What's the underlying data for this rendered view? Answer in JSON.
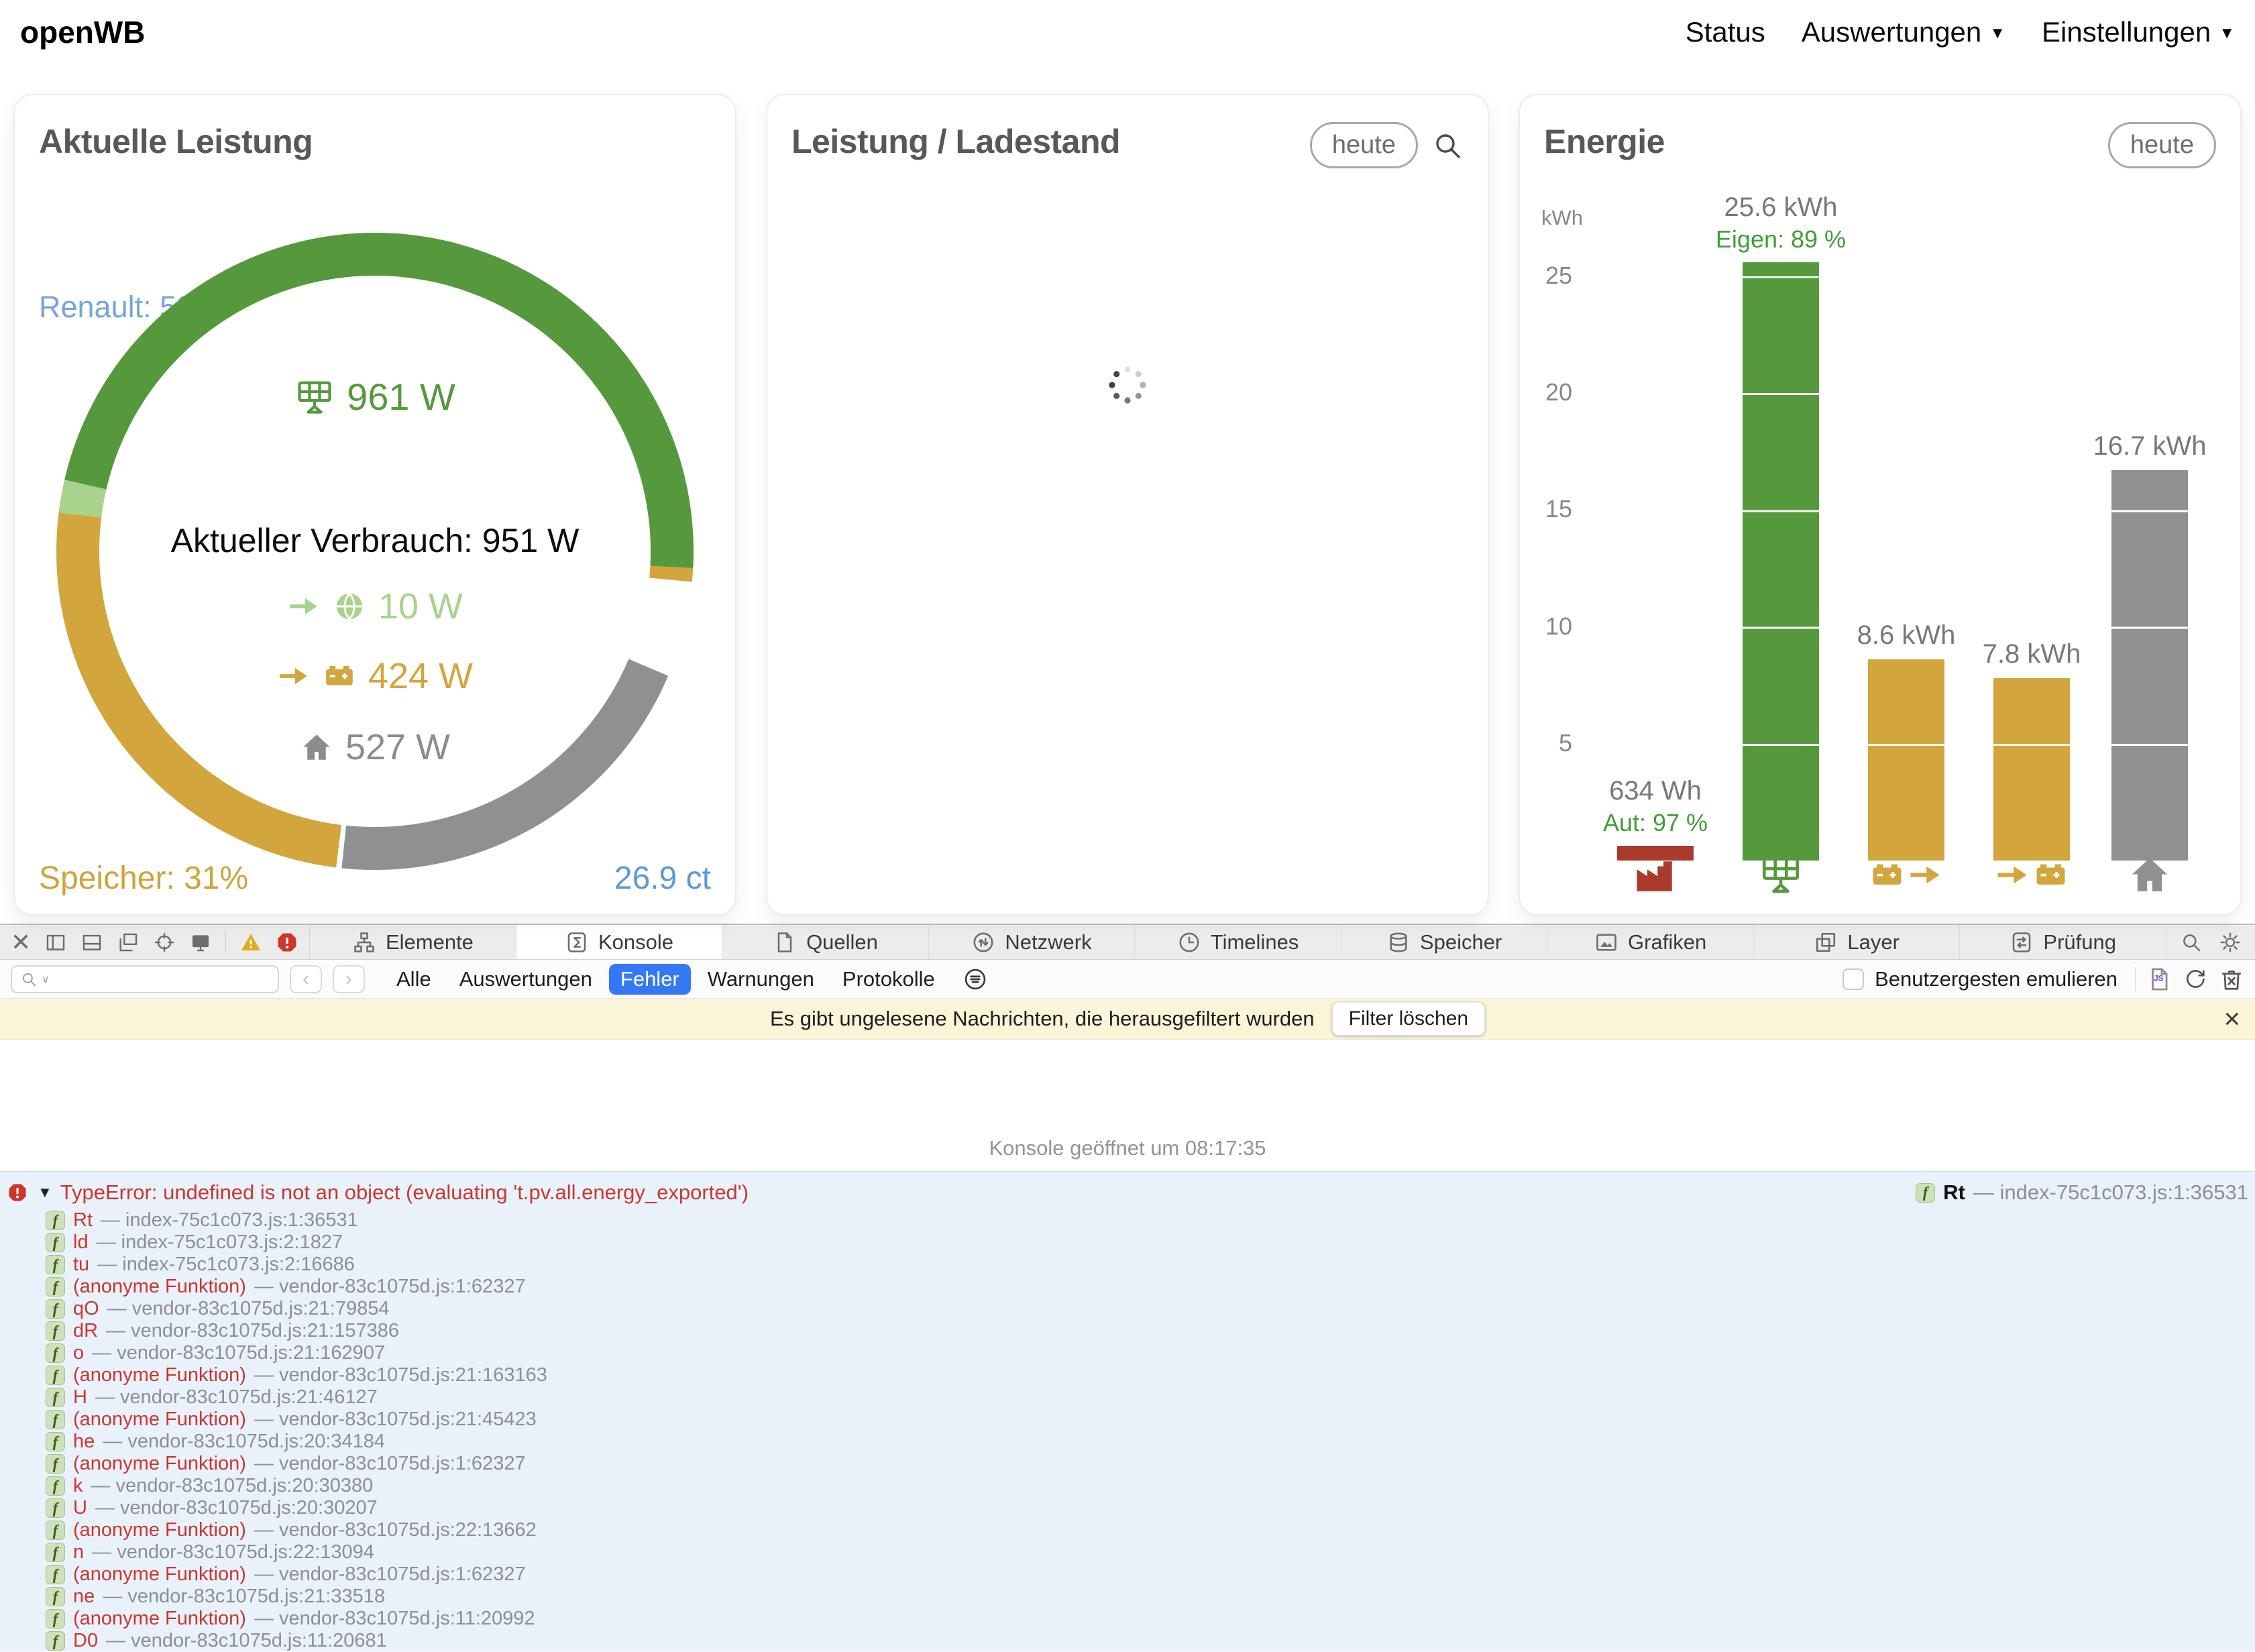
{
  "navbar": {
    "brand": "openWB",
    "items": [
      {
        "label": "Status",
        "dropdown": false
      },
      {
        "label": "Auswertungen",
        "dropdown": true
      },
      {
        "label": "Einstellungen",
        "dropdown": true
      }
    ]
  },
  "cards": {
    "power": {
      "title": "Aktuelle Leistung",
      "vehicle_soc": "Renault: 50%",
      "pv_power": "961 W",
      "consumption": "Aktueller Verbrauch: 951 W",
      "grid_power": "10 W",
      "battery_power": "424 W",
      "house_power": "527 W",
      "storage_soc": "Speicher: 31%",
      "price": "26.9 ct"
    },
    "chart_card": {
      "title": "Leistung / Ladestand",
      "range_button": "heute"
    },
    "energy": {
      "title": "Energie",
      "range_button": "heute"
    }
  },
  "chart_data": [
    {
      "type": "donut",
      "name": "aktuelle-leistung-ring",
      "center_labels": [
        "961 W",
        "Aktueller Verbrauch: 951 W",
        "10 W",
        "424 W",
        "527 W"
      ],
      "segments": [
        {
          "name": "pv",
          "color": "#56993d",
          "start_deg": 283,
          "end_deg": 453
        },
        {
          "name": "battery-tip",
          "color": "#d2a63c",
          "start_deg": 93,
          "end_deg": 95.5
        },
        {
          "name": "gap",
          "color": "#ffffff",
          "start_deg": 95.5,
          "end_deg": 113
        },
        {
          "name": "house",
          "color": "#8f9092",
          "start_deg": 113,
          "end_deg": 186
        },
        {
          "name": "seam",
          "color": "#ffffff",
          "start_deg": 186,
          "end_deg": 187
        },
        {
          "name": "battery",
          "color": "#d2a63c",
          "start_deg": 187,
          "end_deg": 277
        },
        {
          "name": "grid-export",
          "color": "#a9d38c",
          "start_deg": 277,
          "end_deg": 283
        }
      ]
    },
    {
      "type": "bar",
      "title": "Energie",
      "unit": "kWh",
      "ylabel": "kWh",
      "yticks": [
        5,
        10,
        15,
        20,
        25
      ],
      "ylim": [
        0,
        26.5
      ],
      "bars": [
        {
          "name": "grid-import",
          "icon": "factory-icon",
          "color": "#a93a2c",
          "value_kwh": 0.634,
          "label": "634 Wh",
          "sublabel": "Aut: 97 %"
        },
        {
          "name": "pv-production",
          "icon": "solar-panel-icon",
          "color": "#56993d",
          "value_kwh": 25.6,
          "label": "25.6 kWh",
          "sublabel": "Eigen: 89 %"
        },
        {
          "name": "battery-discharge",
          "icon": "battery-out-icon",
          "color": "#d2a63c",
          "value_kwh": 8.6,
          "label": "8.6 kWh",
          "sublabel": ""
        },
        {
          "name": "battery-charge",
          "icon": "battery-in-icon",
          "color": "#d2a63c",
          "value_kwh": 7.8,
          "label": "7.8 kWh",
          "sublabel": ""
        },
        {
          "name": "house-consumption",
          "icon": "house-icon",
          "color": "#8f9092",
          "value_kwh": 16.7,
          "label": "16.7 kWh",
          "sublabel": ""
        }
      ]
    }
  ],
  "devtools": {
    "toolbar": {
      "tabs": [
        {
          "label": "Elemente",
          "icon": "elements-icon",
          "active": false
        },
        {
          "label": "Konsole",
          "icon": "console-icon",
          "active": true
        },
        {
          "label": "Quellen",
          "icon": "document-icon",
          "active": false
        },
        {
          "label": "Netzwerk",
          "icon": "network-icon",
          "active": false
        },
        {
          "label": "Timelines",
          "icon": "clock-icon",
          "active": false
        },
        {
          "label": "Speicher",
          "icon": "database-icon",
          "active": false
        },
        {
          "label": "Grafiken",
          "icon": "image-icon",
          "active": false
        },
        {
          "label": "Layer",
          "icon": "layers-icon",
          "active": false
        },
        {
          "label": "Prüfung",
          "icon": "audit-icon",
          "active": false
        }
      ]
    },
    "filter": {
      "search_placeholder": "",
      "scopes": [
        "Alle",
        "Auswertungen",
        "Fehler",
        "Warnungen",
        "Protokolle"
      ],
      "active_scope": "Fehler",
      "emulate_label": "Benutzergesten emulieren"
    },
    "banner": {
      "text": "Es gibt ungelesene Nachrichten, die herausgefiltert wurden",
      "button": "Filter löschen"
    },
    "console": {
      "opened_text": "Konsole geöffnet um 08:17:35",
      "error": {
        "message": "TypeError: undefined is not an object (evaluating 't.pv.all.energy_exported')",
        "source_fn": "Rt",
        "source_loc": "index-75c1c073.js:1:36531"
      },
      "stack": [
        {
          "fn": "Rt",
          "loc": "index-75c1c073.js:1:36531"
        },
        {
          "fn": "ld",
          "loc": "index-75c1c073.js:2:1827"
        },
        {
          "fn": "tu",
          "loc": "index-75c1c073.js:2:16686"
        },
        {
          "fn": "(anonyme Funktion)",
          "loc": "vendor-83c1075d.js:1:62327"
        },
        {
          "fn": "qO",
          "loc": "vendor-83c1075d.js:21:79854"
        },
        {
          "fn": "dR",
          "loc": "vendor-83c1075d.js:21:157386"
        },
        {
          "fn": "o",
          "loc": "vendor-83c1075d.js:21:162907"
        },
        {
          "fn": "(anonyme Funktion)",
          "loc": "vendor-83c1075d.js:21:163163"
        },
        {
          "fn": "H",
          "loc": "vendor-83c1075d.js:21:46127"
        },
        {
          "fn": "(anonyme Funktion)",
          "loc": "vendor-83c1075d.js:21:45423"
        },
        {
          "fn": "he",
          "loc": "vendor-83c1075d.js:20:34184"
        },
        {
          "fn": "(anonyme Funktion)",
          "loc": "vendor-83c1075d.js:1:62327"
        },
        {
          "fn": "k",
          "loc": "vendor-83c1075d.js:20:30380"
        },
        {
          "fn": "U",
          "loc": "vendor-83c1075d.js:20:30207"
        },
        {
          "fn": "(anonyme Funktion)",
          "loc": "vendor-83c1075d.js:22:13662"
        },
        {
          "fn": "n",
          "loc": "vendor-83c1075d.js:22:13094"
        },
        {
          "fn": "(anonyme Funktion)",
          "loc": "vendor-83c1075d.js:1:62327"
        },
        {
          "fn": "ne",
          "loc": "vendor-83c1075d.js:21:33518"
        },
        {
          "fn": "(anonyme Funktion)",
          "loc": "vendor-83c1075d.js:11:20992"
        },
        {
          "fn": "D0",
          "loc": "vendor-83c1075d.js:11:20681"
        }
      ]
    }
  }
}
